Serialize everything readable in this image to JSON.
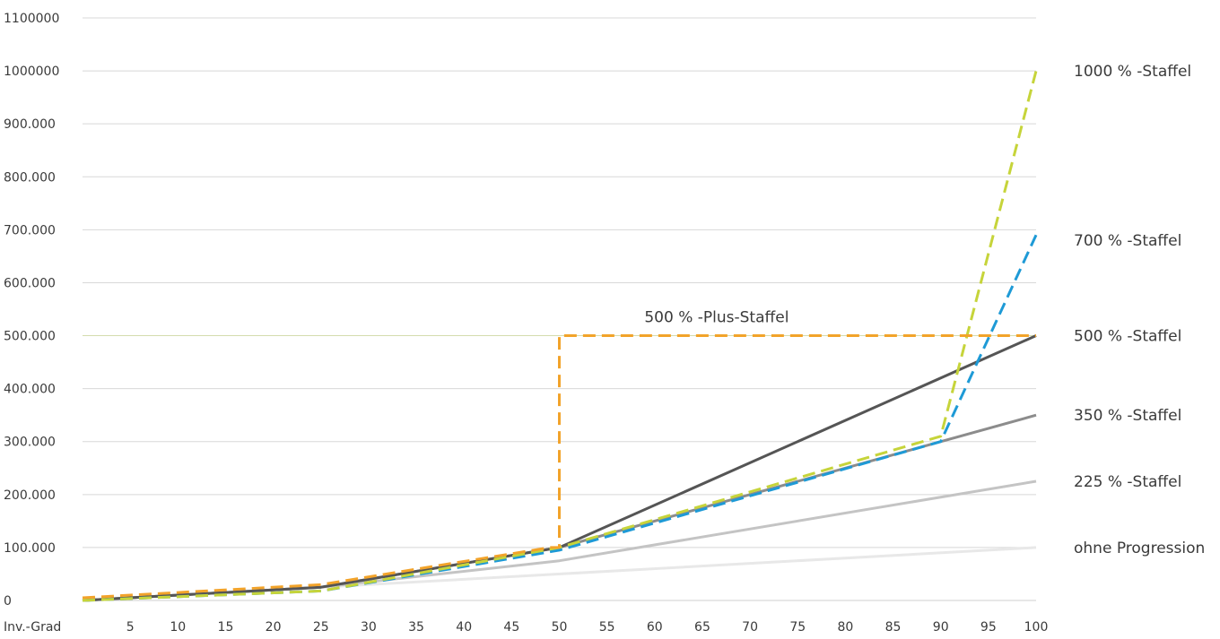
{
  "chart_data": {
    "type": "line",
    "x_label_first": "Inv.-Grad",
    "x": [
      0,
      1,
      2,
      3,
      4,
      5,
      6,
      7,
      8,
      9,
      10,
      11,
      12,
      13,
      14,
      15,
      16,
      17,
      18,
      19,
      20,
      21,
      22,
      23,
      24,
      25,
      26,
      27,
      28,
      29,
      30,
      31,
      32,
      33,
      34,
      35,
      36,
      37,
      38,
      39,
      40,
      41,
      42,
      43,
      44,
      45,
      46,
      47,
      48,
      49,
      50,
      51,
      52,
      53,
      54,
      55,
      56,
      57,
      58,
      59,
      60,
      61,
      62,
      63,
      64,
      65,
      66,
      67,
      68,
      69,
      70,
      71,
      72,
      73,
      74,
      75,
      76,
      77,
      78,
      79,
      80,
      81,
      82,
      83,
      84,
      85,
      86,
      87,
      88,
      89,
      90,
      91,
      92,
      93,
      94,
      95,
      96,
      97,
      98,
      99,
      100
    ],
    "x_ticks": [
      "5",
      "10",
      "15",
      "20",
      "25",
      "30",
      "35",
      "40",
      "45",
      "50",
      "55",
      "60",
      "65",
      "70",
      "75",
      "80",
      "85",
      "90",
      "95",
      "100"
    ],
    "x_tick_values": [
      5,
      10,
      15,
      20,
      25,
      30,
      35,
      40,
      45,
      50,
      55,
      60,
      65,
      70,
      75,
      80,
      85,
      90,
      95,
      100
    ],
    "y_ticks": [
      "0",
      "100.000",
      "200.000",
      "300.000",
      "400.000",
      "500.000",
      "600.000",
      "700.000",
      "800.000",
      "900.000",
      "1000000",
      "1100000"
    ],
    "y_tick_values": [
      0,
      100000,
      200000,
      300000,
      400000,
      500000,
      600000,
      700000,
      800000,
      900000,
      1000000,
      1100000
    ],
    "ylim": [
      0,
      1100000
    ],
    "xlim": [
      0,
      100
    ],
    "grid": true,
    "annotation": "500 % -Plus-Staffel",
    "series": [
      {
        "name": "ohne Progression",
        "color": "#e8e8e8",
        "dash": "solid",
        "points": [
          [
            0,
            0
          ],
          [
            100,
            100000
          ]
        ]
      },
      {
        "name": "225 % -Staffel",
        "color": "#c4c4c4",
        "dash": "solid",
        "points": [
          [
            0,
            0
          ],
          [
            25,
            25000
          ],
          [
            50,
            75000
          ],
          [
            100,
            225000
          ]
        ]
      },
      {
        "name": "350 % -Staffel",
        "color": "#8c8c8c",
        "dash": "solid",
        "points": [
          [
            0,
            0
          ],
          [
            25,
            25000
          ],
          [
            50,
            100000
          ],
          [
            100,
            350000
          ]
        ]
      },
      {
        "name": "500 % -Staffel",
        "color": "#555555",
        "dash": "solid",
        "points": [
          [
            0,
            0
          ],
          [
            25,
            25000
          ],
          [
            50,
            100000
          ],
          [
            100,
            500000
          ]
        ]
      },
      {
        "name": "700 % -Staffel",
        "color": "#1e9ad6",
        "dash": "dashed",
        "points": [
          [
            0,
            0
          ],
          [
            25,
            18000
          ],
          [
            50,
            95000
          ],
          [
            90,
            300000
          ],
          [
            100,
            690000
          ]
        ]
      },
      {
        "name": "1000 % -Staffel",
        "color": "#c6d43a",
        "dash": "dashed",
        "points": [
          [
            0,
            0
          ],
          [
            25,
            18000
          ],
          [
            50,
            100000
          ],
          [
            90,
            310000
          ],
          [
            100,
            1000000
          ]
        ]
      },
      {
        "name": "500 % -Plus-Staffel",
        "color": "#f2a32a",
        "dash": "dashed",
        "points": [
          [
            0,
            5000
          ],
          [
            25,
            30000
          ],
          [
            49,
            100000
          ],
          [
            50,
            100000
          ],
          [
            50,
            500000
          ],
          [
            100,
            500000
          ]
        ]
      }
    ],
    "right_labels": [
      {
        "text": "1000 % -Staffel",
        "at": 1000000
      },
      {
        "text": "700 % -Staffel",
        "at": 680000
      },
      {
        "text": "500 % -Staffel",
        "at": 500000
      },
      {
        "text": "350 % -Staffel",
        "at": 350000
      },
      {
        "text": "225 % -Staffel",
        "at": 225000
      },
      {
        "text": "ohne Progression",
        "at": 100000
      }
    ]
  }
}
